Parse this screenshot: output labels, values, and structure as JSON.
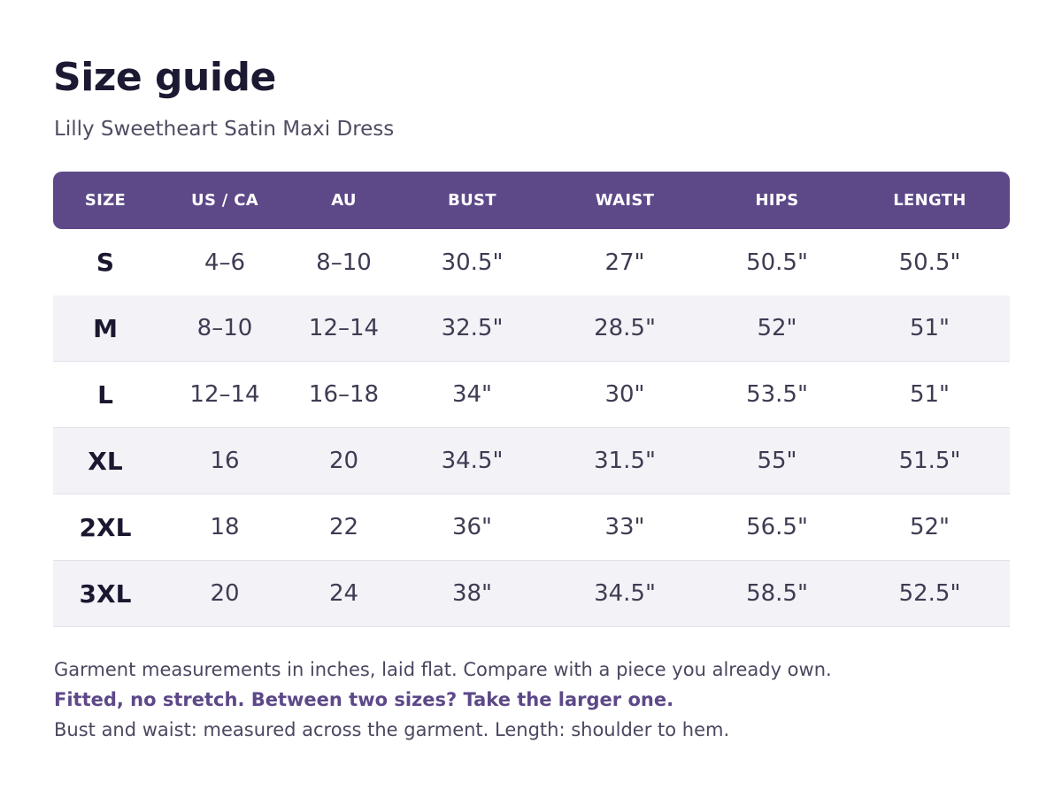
{
  "header": {
    "title": "Size guide",
    "subtitle": "Lilly Sweetheart Satin Maxi Dress"
  },
  "table": {
    "columns": [
      "SIZE",
      "US / CA",
      "AU",
      "BUST",
      "WAIST",
      "HIPS",
      "LENGTH"
    ],
    "rows": [
      [
        "S",
        "4–6",
        "8–10",
        "30.5\"",
        "27\"",
        "50.5\"",
        "50.5\""
      ],
      [
        "M",
        "8–10",
        "12–14",
        "32.5\"",
        "28.5\"",
        "52\"",
        "51\""
      ],
      [
        "L",
        "12–14",
        "16–18",
        "34\"",
        "30\"",
        "53.5\"",
        "51\""
      ],
      [
        "XL",
        "16",
        "20",
        "34.5\"",
        "31.5\"",
        "55\"",
        "51.5\""
      ],
      [
        "2XL",
        "18",
        "22",
        "36\"",
        "33\"",
        "56.5\"",
        "52\""
      ],
      [
        "3XL",
        "20",
        "24",
        "38\"",
        "34.5\"",
        "58.5\"",
        "52.5\""
      ]
    ]
  },
  "notes": {
    "line1": "Garment measurements in inches, laid flat. Compare with a piece you already own.",
    "line2": "Fitted, no stretch. Between two sizes? Take the larger one.",
    "line3": "Bust and waist: measured across the garment.  Length: shoulder to hem."
  },
  "colors": {
    "header_bg": "#5d4888",
    "accent_text": "#5d4888",
    "row_alt_bg": "#f3f2f7"
  }
}
